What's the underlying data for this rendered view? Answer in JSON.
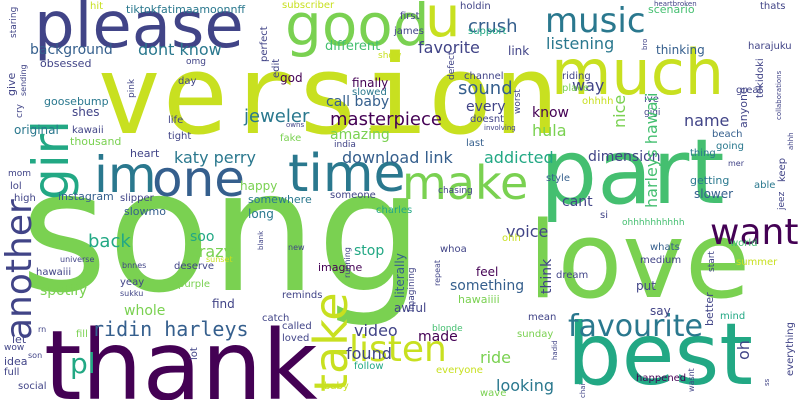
{
  "colors": {
    "background": "#ffffff",
    "yellow_green": "#c8e020",
    "green": "#7ad151",
    "mid_green": "#44bf70",
    "teal": "#22a884",
    "blue_teal": "#2a788e",
    "blue": "#355f8d",
    "indigo": "#414487",
    "purple": "#440154"
  },
  "words": {
    "song": "song",
    "version": "version",
    "thank": "thank",
    "love": "love",
    "best": "best",
    "part": "part",
    "please": "please",
    "much": "much",
    "good": "good",
    "u": "u",
    "one": "one",
    "time": "time",
    "make": "make",
    "im": "im",
    "girl": "girl",
    "another": "another",
    "take": "take",
    "want": "want",
    "music": "music",
    "favourite": "favourite",
    "listen": "listen",
    "ridin_harleys": "ridin harleys",
    "pl": "pl",
    "masterpiece": "masterpiece",
    "sound": "sound",
    "jeweler": "jeweler",
    "crush": "crush",
    "dont_know": "dont know",
    "favorite": "favorite",
    "listening": "listening",
    "background": "background",
    "katy_perry": "katy perry",
    "download_link": "download link",
    "addicted": "addicted",
    "dimension": "dimension",
    "voice": "voice",
    "back": "back",
    "crazy": "crazy",
    "soo": "soo",
    "video": "video",
    "found": "found",
    "made": "made",
    "looking": "looking",
    "ride": "ride",
    "hula": "hula",
    "know": "know",
    "name": "name",
    "every": "every",
    "call_baby": "call baby",
    "amazing": "amazing",
    "finally": "finally",
    "slowed": "slowed",
    "god": "god",
    "different": "different",
    "link": "link",
    "way": "way",
    "nice": "nice",
    "harleys_hawaii": "harleys hawaii",
    "tiktokfatimaamoonnff": "tiktokfatimaamoonnff",
    "hit": "hit",
    "subscriber": "subscriber",
    "holdin": "holdin",
    "scenario": "scenario",
    "thats": "thats",
    "heartbroken": "heartbroken",
    "first": "first",
    "james": "james",
    "support": "support",
    "thinking": "thinking",
    "harajuku": "harajuku",
    "tokidoki": "tokidoki",
    "anyone": "anyone",
    "great": "great",
    "beach": "beach",
    "going": "going",
    "thing": "thing",
    "getting": "getting",
    "slower": "slower",
    "able": "able",
    "keep": "keep",
    "jeez": "jeez",
    "world": "world",
    "summer": "summer",
    "better": "better",
    "mind": "mind",
    "everything": "everything",
    "wave": "wave",
    "happened": "happened",
    "say": "say",
    "mean": "mean",
    "sunday": "sunday",
    "oh": "oh",
    "put": "put",
    "start": "start",
    "dream": "dream",
    "si": "si",
    "ohh": "ohh",
    "whoa": "whoa",
    "feel": "feel",
    "think": "think",
    "something": "something",
    "hawaiiii": "hawaiiii",
    "cant": "cant",
    "whats": "whats",
    "medium": "medium",
    "ohhhhhhhhhh": "ohhhhhhhhhh",
    "chasing": "chasing",
    "style": "style",
    "last": "last",
    "charles": "charles",
    "someone": "someone",
    "long": "long",
    "happy": "happy",
    "somewhere": "somewhere",
    "stop": "stop",
    "imagine": "imagine",
    "deserve": "deserve",
    "literally": "literally",
    "imagining": "imagining",
    "awful": "awful",
    "reminds": "reminds",
    "called": "called",
    "loved": "loved",
    "follow": "follow",
    "everyone": "everyone",
    "baby": "baby",
    "blonde": "blonde",
    "whole": "whole",
    "purple": "purple",
    "find": "find",
    "catch": "catch",
    "spotify": "spotify",
    "yeay": "yeay",
    "hawaiii": "hawaiii",
    "slowmo": "slowmo",
    "slipper": "slipper",
    "instagram": "instagram",
    "high": "high",
    "lol": "lol",
    "mom": "mom",
    "heart": "heart",
    "thousand": "thousand",
    "kawaii": "kawaii",
    "shes": "shes",
    "original": "original",
    "cry": "cry",
    "goosebump": "goosebump",
    "obsessed": "obsessed",
    "give": "give",
    "sending": "sending",
    "staring": "staring",
    "tight": "tight",
    "life": "life",
    "day": "day",
    "omg": "omg",
    "pink": "pink",
    "perfect": "perfect",
    "edit": "edit",
    "show": "show",
    "defect": "defect",
    "channel": "channel",
    "riding": "riding",
    "place": "place",
    "ohhhh": "ohhhh",
    "doesnt": "doesnt",
    "involving": "involving",
    "worst": "worst",
    "ive": "ive",
    "gigi": "gigi",
    "fake": "fake",
    "india": "india",
    "owns": "owns",
    "bro": "bro",
    "fill": "fill",
    "let": "let",
    "idea": "idea",
    "wow": "wow",
    "full": "full",
    "social": "social",
    "son": "son",
    "rn": "rn",
    "lot": "lot",
    "new": "new",
    "blank": "blank",
    "running": "running",
    "repeat": "repeat",
    "sukku": "sukku",
    "bnnes": "bnnes",
    "universe": "universe",
    "sunset": "sunset",
    "hadid": "hadid",
    "chai": "chai",
    "wasnt": "wasnt",
    "ahhh": "ahhh",
    "collaborations": "collaborations",
    "mer": "mer",
    "ss": "ss"
  }
}
